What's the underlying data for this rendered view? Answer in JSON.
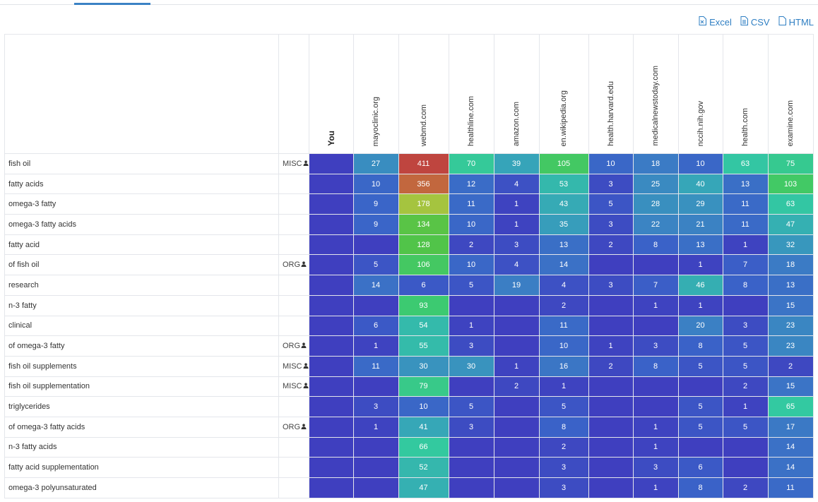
{
  "exports": [
    {
      "label": "Excel",
      "icon": "excel-file-icon"
    },
    {
      "label": "CSV",
      "icon": "csv-file-icon"
    },
    {
      "label": "HTML",
      "icon": "html-file-icon"
    }
  ],
  "columns": [
    "You",
    "mayoclinic.org",
    "webmd.com",
    "healthline.com",
    "amazon.com",
    "en.wikipedia.org",
    "health.harvard.edu",
    "medicalnewstoday.com",
    "nccih.nih.gov",
    "health.com",
    "examine.com"
  ],
  "rows": [
    {
      "keyword": "fish oil",
      "tag": "MISC",
      "values": [
        null,
        27,
        411,
        70,
        39,
        105,
        10,
        18,
        10,
        63,
        75
      ]
    },
    {
      "keyword": "fatty acids",
      "tag": "",
      "values": [
        null,
        10,
        356,
        12,
        4,
        53,
        3,
        25,
        40,
        13,
        103
      ]
    },
    {
      "keyword": "omega-3 fatty",
      "tag": "",
      "values": [
        null,
        9,
        178,
        11,
        1,
        43,
        5,
        28,
        29,
        11,
        63
      ]
    },
    {
      "keyword": "omega-3 fatty acids",
      "tag": "",
      "values": [
        null,
        9,
        134,
        10,
        1,
        35,
        3,
        22,
        21,
        11,
        47
      ]
    },
    {
      "keyword": "fatty acid",
      "tag": "",
      "values": [
        null,
        null,
        128,
        2,
        3,
        13,
        2,
        8,
        13,
        1,
        32
      ]
    },
    {
      "keyword": "of fish oil",
      "tag": "ORG",
      "values": [
        null,
        5,
        106,
        10,
        4,
        14,
        null,
        null,
        1,
        7,
        18
      ]
    },
    {
      "keyword": "research",
      "tag": "",
      "values": [
        null,
        14,
        6,
        5,
        19,
        4,
        3,
        7,
        46,
        8,
        13
      ]
    },
    {
      "keyword": "n-3 fatty",
      "tag": "",
      "values": [
        null,
        null,
        93,
        null,
        null,
        2,
        null,
        1,
        1,
        null,
        15
      ]
    },
    {
      "keyword": "clinical",
      "tag": "",
      "values": [
        null,
        6,
        54,
        1,
        null,
        11,
        null,
        null,
        20,
        3,
        23
      ]
    },
    {
      "keyword": "of omega-3 fatty",
      "tag": "ORG",
      "values": [
        null,
        1,
        55,
        3,
        null,
        10,
        1,
        3,
        8,
        5,
        23
      ]
    },
    {
      "keyword": "fish oil supplements",
      "tag": "MISC",
      "values": [
        null,
        11,
        30,
        30,
        1,
        16,
        2,
        8,
        5,
        5,
        2
      ]
    },
    {
      "keyword": "fish oil supplementation",
      "tag": "MISC",
      "values": [
        null,
        null,
        79,
        null,
        2,
        1,
        null,
        null,
        null,
        2,
        15
      ]
    },
    {
      "keyword": "triglycerides",
      "tag": "",
      "values": [
        null,
        3,
        10,
        5,
        null,
        5,
        null,
        null,
        5,
        1,
        65
      ]
    },
    {
      "keyword": "of omega-3 fatty acids",
      "tag": "ORG",
      "values": [
        null,
        1,
        41,
        3,
        null,
        8,
        null,
        1,
        5,
        5,
        17
      ]
    },
    {
      "keyword": "n-3 fatty acids",
      "tag": "",
      "values": [
        null,
        null,
        66,
        null,
        null,
        2,
        null,
        1,
        null,
        null,
        14
      ]
    },
    {
      "keyword": "fatty acid supplementation",
      "tag": "",
      "values": [
        null,
        null,
        52,
        null,
        null,
        3,
        null,
        3,
        6,
        null,
        14
      ]
    },
    {
      "keyword": "omega-3 polyunsaturated",
      "tag": "",
      "values": [
        null,
        null,
        47,
        null,
        null,
        3,
        null,
        1,
        8,
        2,
        11
      ]
    }
  ],
  "colors": {
    "empty": "#3f3fbf",
    "accent": "#2f7fc3"
  }
}
